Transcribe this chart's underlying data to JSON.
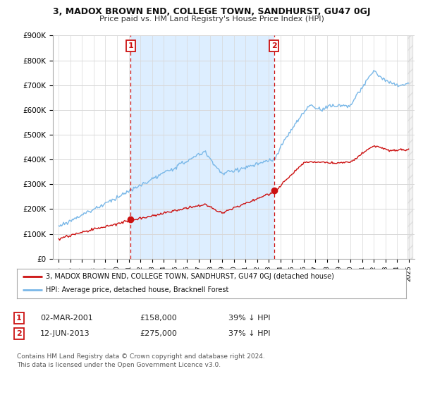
{
  "title": "3, MADOX BROWN END, COLLEGE TOWN, SANDHURST, GU47 0GJ",
  "subtitle": "Price paid vs. HM Land Registry's House Price Index (HPI)",
  "ylim": [
    0,
    900000
  ],
  "yticks": [
    0,
    100000,
    200000,
    300000,
    400000,
    500000,
    600000,
    700000,
    800000,
    900000
  ],
  "ytick_labels": [
    "£0",
    "£100K",
    "£200K",
    "£300K",
    "£400K",
    "£500K",
    "£600K",
    "£700K",
    "£800K",
    "£900K"
  ],
  "hpi_color": "#7ab8e8",
  "price_color": "#cc1111",
  "background_color": "#ffffff",
  "grid_color": "#d8d8d8",
  "shade_color": "#ddeeff",
  "sale1_year": 2001.17,
  "sale1_price": 158000,
  "sale2_year": 2013.45,
  "sale2_price": 275000,
  "legend_label_price": "3, MADOX BROWN END, COLLEGE TOWN, SANDHURST, GU47 0GJ (detached house)",
  "legend_label_hpi": "HPI: Average price, detached house, Bracknell Forest",
  "footer": "Contains HM Land Registry data © Crown copyright and database right 2024.\nThis data is licensed under the Open Government Licence v3.0."
}
